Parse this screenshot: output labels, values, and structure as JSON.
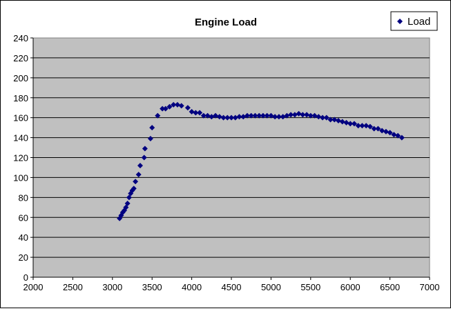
{
  "chart_data": {
    "type": "scatter",
    "title": "Engine Load",
    "xlabel": "",
    "ylabel": "",
    "xlim": [
      2000,
      7000
    ],
    "ylim": [
      0,
      240
    ],
    "x_ticks": [
      2000,
      2500,
      3000,
      3500,
      4000,
      4500,
      5000,
      5500,
      6000,
      6500,
      7000
    ],
    "y_ticks": [
      0,
      20,
      40,
      60,
      80,
      100,
      120,
      140,
      160,
      180,
      200,
      220,
      240
    ],
    "grid": "horizontal",
    "legend": "top-right",
    "plot_background": "#c0c0c0",
    "marker": "diamond",
    "series": [
      {
        "name": "Load",
        "color": "#000080",
        "points": [
          [
            3090,
            59
          ],
          [
            3110,
            62
          ],
          [
            3130,
            65
          ],
          [
            3150,
            67
          ],
          [
            3170,
            70
          ],
          [
            3190,
            74
          ],
          [
            3210,
            80
          ],
          [
            3230,
            84
          ],
          [
            3250,
            87
          ],
          [
            3270,
            89
          ],
          [
            3290,
            96
          ],
          [
            3330,
            103
          ],
          [
            3350,
            112
          ],
          [
            3400,
            120
          ],
          [
            3410,
            129
          ],
          [
            3480,
            139
          ],
          [
            3500,
            150
          ],
          [
            3570,
            162
          ],
          [
            3630,
            169
          ],
          [
            3670,
            169
          ],
          [
            3720,
            171
          ],
          [
            3770,
            173
          ],
          [
            3820,
            173
          ],
          [
            3870,
            172
          ],
          [
            3950,
            170
          ],
          [
            4000,
            166
          ],
          [
            4050,
            165
          ],
          [
            4100,
            165
          ],
          [
            4150,
            162
          ],
          [
            4200,
            162
          ],
          [
            4250,
            161
          ],
          [
            4300,
            162
          ],
          [
            4350,
            161
          ],
          [
            4400,
            160
          ],
          [
            4450,
            160
          ],
          [
            4500,
            160
          ],
          [
            4550,
            160
          ],
          [
            4600,
            161
          ],
          [
            4650,
            161
          ],
          [
            4700,
            162
          ],
          [
            4750,
            162
          ],
          [
            4800,
            162
          ],
          [
            4850,
            162
          ],
          [
            4900,
            162
          ],
          [
            4950,
            162
          ],
          [
            5000,
            162
          ],
          [
            5050,
            161
          ],
          [
            5100,
            161
          ],
          [
            5150,
            161
          ],
          [
            5200,
            162
          ],
          [
            5250,
            163
          ],
          [
            5300,
            163
          ],
          [
            5350,
            164
          ],
          [
            5400,
            163
          ],
          [
            5450,
            163
          ],
          [
            5500,
            162
          ],
          [
            5550,
            162
          ],
          [
            5600,
            161
          ],
          [
            5650,
            160
          ],
          [
            5700,
            160
          ],
          [
            5750,
            158
          ],
          [
            5800,
            158
          ],
          [
            5850,
            157
          ],
          [
            5900,
            156
          ],
          [
            5950,
            155
          ],
          [
            6000,
            154
          ],
          [
            6050,
            154
          ],
          [
            6100,
            152
          ],
          [
            6150,
            152
          ],
          [
            6200,
            152
          ],
          [
            6250,
            151
          ],
          [
            6300,
            149
          ],
          [
            6350,
            149
          ],
          [
            6400,
            147
          ],
          [
            6450,
            146
          ],
          [
            6500,
            145
          ],
          [
            6550,
            143
          ],
          [
            6600,
            142
          ],
          [
            6650,
            140
          ]
        ]
      }
    ]
  }
}
